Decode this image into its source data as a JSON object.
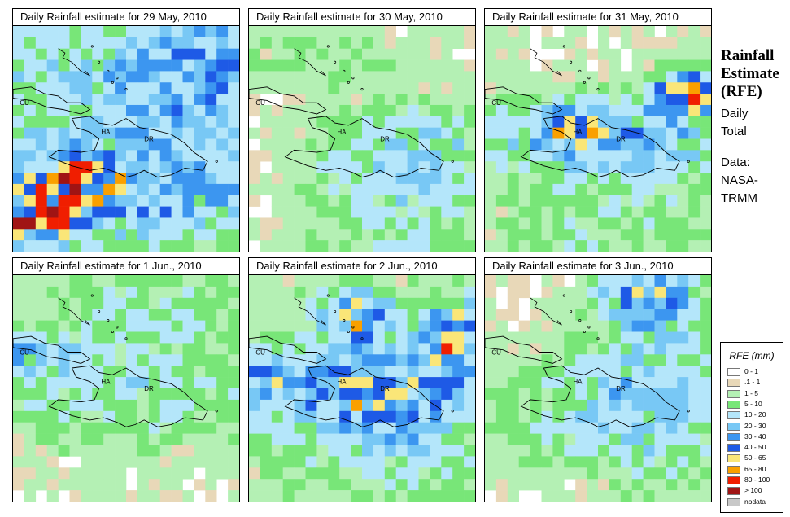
{
  "panels": [
    {
      "title": "Daily Rainfall estimate for  29 May, 2010",
      "day": 0
    },
    {
      "title": "Daily Rainfall estimate for  30 May, 2010",
      "day": 1
    },
    {
      "title": "Daily Rainfall estimate for  31 May, 2010",
      "day": 2
    },
    {
      "title": "Daily Rainfall estimate for  1 Jun., 2010",
      "day": 3
    },
    {
      "title": "Daily Rainfall estimate for  2 Jun., 2010",
      "day": 4
    },
    {
      "title": "Daily Rainfall estimate for  3 Jun., 2010",
      "day": 5
    }
  ],
  "map_labels": {
    "cu": "CU",
    "ha": "HA",
    "dr": "DR"
  },
  "side_panel": {
    "title_lines": [
      "Rainfall",
      "Estimate",
      "(RFE)"
    ],
    "subtitle_lines": [
      "Daily",
      "Total"
    ],
    "source_lines": [
      "Data:",
      "NASA-",
      "TRMM"
    ]
  },
  "legend": {
    "title": "RFE (mm)",
    "items": [
      {
        "label": "0 - 1",
        "color": "#ffffff"
      },
      {
        "label": ".1 - 1",
        "color": "#e8d8b8"
      },
      {
        "label": "1 - 5",
        "color": "#b4f0b4"
      },
      {
        "label": "5 - 10",
        "color": "#78e678"
      },
      {
        "label": "10 - 20",
        "color": "#b4e6fa"
      },
      {
        "label": "20 - 30",
        "color": "#78c8f5"
      },
      {
        "label": "30 - 40",
        "color": "#3c96f0"
      },
      {
        "label": "40 - 50",
        "color": "#1e5ae6"
      },
      {
        "label": "50 - 65",
        "color": "#fae678"
      },
      {
        "label": "65 - 80",
        "color": "#faa000"
      },
      {
        "label": "80 - 100",
        "color": "#f01e00"
      },
      {
        "label": "> 100",
        "color": "#a01414"
      },
      {
        "label": "nodata",
        "color": "#c8c8c8"
      }
    ]
  }
}
